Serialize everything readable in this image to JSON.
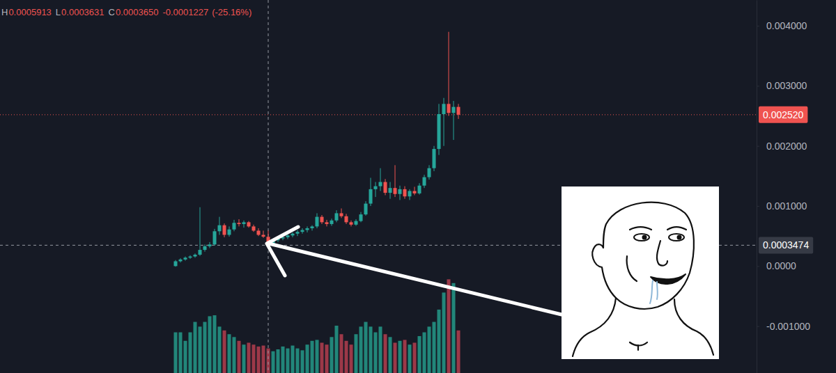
{
  "chart_data": [
    {
      "type": "candlestick",
      "categories": [
        null,
        null,
        null,
        null,
        null,
        null,
        null,
        null,
        null,
        null,
        null,
        null,
        null,
        null,
        null,
        null,
        null,
        null,
        null,
        null,
        null,
        null,
        null,
        null,
        null,
        null,
        null,
        null,
        null,
        null,
        null,
        null,
        null,
        null,
        null,
        null,
        null,
        null,
        null,
        null,
        null,
        null,
        null,
        null,
        null,
        null,
        null,
        null,
        null,
        null,
        null,
        null,
        null,
        null,
        null,
        null,
        null,
        null,
        null
      ],
      "open": [
        0.0,
        8e-05,
        0.00011,
        0.00014,
        0.00016,
        0.00019,
        0.00027,
        0.00033,
        0.00036,
        0.00058,
        0.00068,
        0.00052,
        0.00061,
        0.00072,
        0.0007,
        0.00073,
        0.00066,
        0.00059,
        0.00052,
        0.0004877,
        0.00037,
        0.00043,
        0.00046,
        0.00048,
        0.00051,
        0.00054,
        0.00057,
        0.0006,
        0.00063,
        0.00066,
        0.00082,
        0.00073,
        0.0007,
        0.00076,
        0.00088,
        0.00083,
        0.00073,
        0.00069,
        0.00075,
        0.00086,
        0.00104,
        0.00128,
        0.00133,
        0.0014,
        0.00122,
        0.0013,
        0.0012,
        0.00128,
        0.00116,
        0.00125,
        0.00121,
        0.00134,
        0.00148,
        0.00163,
        0.00195,
        0.00253,
        0.0027,
        0.00255,
        0.00265
      ],
      "high": [
        0.0001,
        0.00013,
        0.00016,
        0.00018,
        0.00021,
        0.00098,
        0.00036,
        0.0004,
        0.00062,
        0.00082,
        0.00071,
        0.00066,
        0.00077,
        0.00078,
        0.00076,
        0.00075,
        0.00069,
        0.00063,
        0.00059,
        0.0005913,
        0.00045,
        0.00048,
        0.0005,
        0.00053,
        0.00056,
        0.0006,
        0.00063,
        0.00066,
        0.00068,
        0.00088,
        0.00085,
        0.00077,
        0.00079,
        0.00093,
        0.00096,
        0.00087,
        0.00076,
        0.00078,
        0.0009,
        0.00108,
        0.00147,
        0.0014,
        0.00163,
        0.00145,
        0.0014,
        0.00168,
        0.00134,
        0.00133,
        0.00128,
        0.00132,
        0.00138,
        0.00152,
        0.00168,
        0.002,
        0.0027,
        0.0028,
        0.0039,
        0.00275,
        0.0027
      ],
      "low": [
        -1e-05,
        6e-05,
        9e-05,
        0.00012,
        0.00014,
        0.00017,
        0.00024,
        0.0003,
        0.00034,
        0.00052,
        0.00048,
        0.00049,
        0.00058,
        0.00066,
        0.00064,
        0.00064,
        0.00057,
        0.0005,
        0.00047,
        0.0003631,
        0.00035,
        0.0004,
        0.00043,
        0.00045,
        0.00048,
        0.0005,
        0.00054,
        0.00056,
        0.00059,
        0.00063,
        0.0007,
        0.00066,
        0.00067,
        0.00073,
        0.0008,
        0.0007,
        0.00066,
        0.00067,
        0.00073,
        0.00084,
        0.001,
        0.00115,
        0.00125,
        0.00118,
        0.00112,
        0.00115,
        0.0011,
        0.00112,
        0.0011,
        0.00118,
        0.00119,
        0.0013,
        0.00144,
        0.00158,
        0.00185,
        0.002,
        0.0025,
        0.0021,
        0.00245
      ],
      "close": [
        8e-05,
        0.00011,
        0.00014,
        0.00016,
        0.00019,
        0.00027,
        0.00033,
        0.00036,
        0.00058,
        0.00068,
        0.00052,
        0.00061,
        0.00072,
        0.0007,
        0.00073,
        0.00066,
        0.00059,
        0.00052,
        0.00049,
        0.000365,
        0.00043,
        0.00046,
        0.00048,
        0.00051,
        0.00054,
        0.00057,
        0.0006,
        0.00063,
        0.00066,
        0.00082,
        0.00073,
        0.0007,
        0.00076,
        0.00088,
        0.00083,
        0.00073,
        0.00069,
        0.00075,
        0.00086,
        0.00104,
        0.00128,
        0.00133,
        0.0014,
        0.00122,
        0.0013,
        0.0012,
        0.00128,
        0.00116,
        0.00125,
        0.00121,
        0.00134,
        0.00148,
        0.00163,
        0.00195,
        0.00253,
        0.0027,
        0.00255,
        0.00265,
        0.00252
      ],
      "colors": [
        "#26a69a",
        "#26a69a",
        "#26a69a",
        "#26a69a",
        "#26a69a",
        "#26a69a",
        "#26a69a",
        "#26a69a",
        "#26a69a",
        "#26a69a",
        "#ef5350",
        "#26a69a",
        "#26a69a",
        "#ef5350",
        "#26a69a",
        "#ef5350",
        "#ef5350",
        "#ef5350",
        "#ef5350",
        "#ef5350",
        "#26a69a",
        "#26a69a",
        "#26a69a",
        "#26a69a",
        "#26a69a",
        "#26a69a",
        "#26a69a",
        "#26a69a",
        "#26a69a",
        "#26a69a",
        "#ef5350",
        "#ef5350",
        "#26a69a",
        "#26a69a",
        "#ef5350",
        "#ef5350",
        "#ef5350",
        "#26a69a",
        "#26a69a",
        "#26a69a",
        "#26a69a",
        "#26a69a",
        "#26a69a",
        "#ef5350",
        "#26a69a",
        "#ef5350",
        "#26a69a",
        "#ef5350",
        "#26a69a",
        "#ef5350",
        "#26a69a",
        "#26a69a",
        "#26a69a",
        "#26a69a",
        "#26a69a",
        "#26a69a",
        "#ef5350",
        "#26a69a",
        "#ef5350"
      ],
      "ylim": [
        -0.00178,
        0.00443
      ],
      "yticks": [
        {
          "value": -0.001,
          "label": "-0.001000"
        },
        {
          "value": 0,
          "label": "0.0000"
        },
        {
          "value": 0.001,
          "label": "0.001000"
        },
        {
          "value": 0.002,
          "label": "0.002000"
        },
        {
          "value": 0.003,
          "label": "0.003000"
        },
        {
          "value": 0.004,
          "label": "0.004000"
        }
      ],
      "grid": false,
      "tick_labels": "y",
      "ohlc_header": [
        {
          "prefix": "H",
          "value": 0.0005913,
          "label": "0.0005913"
        },
        {
          "prefix": "L",
          "value": 0.0003631,
          "label": "0.0003631"
        },
        {
          "prefix": "C",
          "value": 0.000365,
          "label": "0.0003650"
        }
      ],
      "change": {
        "value": -0.0001227,
        "label": "-0.0001227"
      },
      "change_percent": {
        "value": -25.16,
        "label": "(-25.16%)"
      },
      "last_price": {
        "value": 0.00252,
        "label": "0.002520"
      },
      "crosshair": {
        "index": 19,
        "value": 0.0003474,
        "label": "0.0003474"
      }
    },
    {
      "type": "bar",
      "categories": [
        null,
        null,
        null,
        null,
        null,
        null,
        null,
        null,
        null,
        null,
        null,
        null,
        null,
        null,
        null,
        null,
        null,
        null,
        null,
        null,
        null,
        null,
        null,
        null,
        null,
        null,
        null,
        null,
        null,
        null,
        null,
        null,
        null,
        null,
        null,
        null,
        null,
        null,
        null,
        null,
        null,
        null,
        null,
        null,
        null,
        null,
        null,
        null,
        null,
        null,
        null,
        null,
        null,
        null,
        null,
        null,
        null,
        null,
        null
      ],
      "values": [
        43,
        43,
        34,
        43,
        54,
        49,
        54,
        60,
        61,
        49,
        45,
        41,
        38,
        34,
        30,
        32,
        30,
        28,
        29,
        26,
        23,
        25,
        28,
        26,
        29,
        26,
        24,
        30,
        34,
        35,
        32,
        30,
        38,
        50,
        41,
        34,
        30,
        41,
        49,
        54,
        49,
        43,
        49,
        41,
        38,
        32,
        34,
        35,
        30,
        32,
        39,
        43,
        49,
        54,
        67,
        85,
        99,
        95,
        45
      ],
      "colors": [
        "#22867a",
        "#22867a",
        "#22867a",
        "#22867a",
        "#22867a",
        "#22867a",
        "#22867a",
        "#22867a",
        "#22867a",
        "#22867a",
        "#9c3848",
        "#22867a",
        "#22867a",
        "#9c3848",
        "#22867a",
        "#9c3848",
        "#9c3848",
        "#9c3848",
        "#9c3848",
        "#9c3848",
        "#22867a",
        "#22867a",
        "#22867a",
        "#22867a",
        "#22867a",
        "#22867a",
        "#22867a",
        "#22867a",
        "#22867a",
        "#22867a",
        "#9c3848",
        "#9c3848",
        "#22867a",
        "#22867a",
        "#9c3848",
        "#9c3848",
        "#9c3848",
        "#22867a",
        "#22867a",
        "#22867a",
        "#22867a",
        "#22867a",
        "#22867a",
        "#9c3848",
        "#22867a",
        "#9c3848",
        "#22867a",
        "#9c3848",
        "#22867a",
        "#9c3848",
        "#22867a",
        "#22867a",
        "#22867a",
        "#22867a",
        "#22867a",
        "#22867a",
        "#9c3848",
        "#22867a",
        "#9c3848"
      ],
      "ylim": [
        0,
        100
      ],
      "yticks": [],
      "grid": false,
      "tick_labels": false
    }
  ]
}
